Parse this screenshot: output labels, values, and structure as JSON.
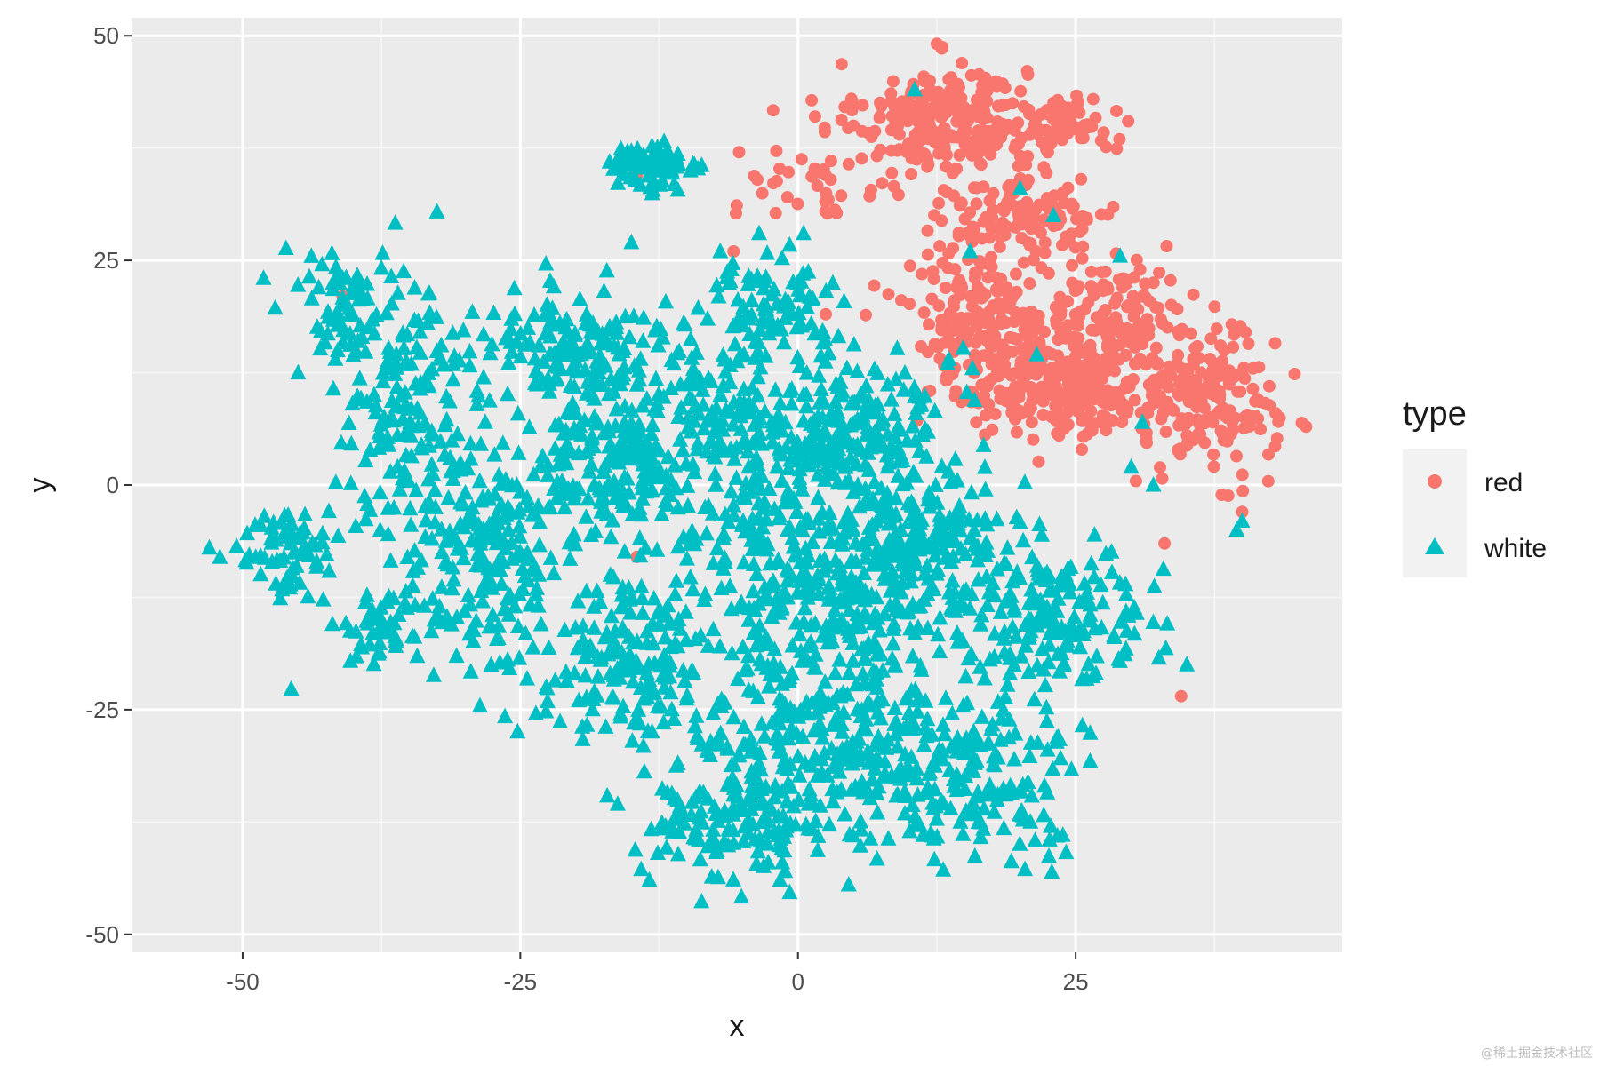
{
  "chart_data": {
    "type": "scatter",
    "title": "",
    "xlabel": "x",
    "ylabel": "y",
    "xlim": [
      -60,
      49
    ],
    "ylim": [
      -52,
      52
    ],
    "x_ticks": [
      -50,
      -25,
      0,
      25
    ],
    "x_tick_labels": [
      "-50",
      "-25",
      "0",
      "25"
    ],
    "y_ticks": [
      -50,
      -25,
      0,
      25,
      50
    ],
    "y_tick_labels": [
      "-50",
      "-25",
      "0",
      "25",
      "50"
    ],
    "grid": true,
    "background": "#ebebeb",
    "legend": {
      "title": "type",
      "position": "right",
      "entries": [
        {
          "label": "red",
          "shape": "circle",
          "color": "#F8766D"
        },
        {
          "label": "white",
          "shape": "triangle",
          "color": "#00BFC4"
        }
      ]
    },
    "series": [
      {
        "name": "red",
        "shape": "circle",
        "color": "#F8766D",
        "clusters": [
          {
            "center": [
              13,
              41
            ],
            "spread": [
              5,
              4
            ],
            "count": 230
          },
          {
            "center": [
              24,
              40
            ],
            "spread": [
              3,
              2
            ],
            "count": 80
          },
          {
            "center": [
              20,
              30
            ],
            "spread": [
              6,
              4
            ],
            "count": 140
          },
          {
            "center": [
              17,
              19
            ],
            "spread": [
              5,
              4
            ],
            "count": 170
          },
          {
            "center": [
              29,
              19
            ],
            "spread": [
              4,
              4
            ],
            "count": 110
          },
          {
            "center": [
              26,
              11
            ],
            "spread": [
              6,
              4
            ],
            "count": 200
          },
          {
            "center": [
              37,
              9
            ],
            "spread": [
              4,
              5
            ],
            "count": 170
          },
          {
            "center": [
              20,
              11
            ],
            "spread": [
              5,
              3
            ],
            "count": 90
          },
          {
            "center": [
              2,
              35
            ],
            "spread": [
              5,
              4
            ],
            "count": 45
          }
        ],
        "points": [
          [
            34.5,
            -23.5
          ],
          [
            33,
            -6.5
          ],
          [
            -41,
            21
          ],
          [
            -5.8,
            26
          ],
          [
            -14.5,
            34.5
          ],
          [
            40,
            -3
          ],
          [
            2.5,
            19
          ],
          [
            43,
            8
          ],
          [
            -14.5,
            -8
          ]
        ]
      },
      {
        "name": "white",
        "shape": "triangle",
        "color": "#00BFC4",
        "clusters": [
          {
            "center": [
              -35,
              8
            ],
            "spread": [
              5,
              9
            ],
            "count": 150
          },
          {
            "center": [
              -28,
              -8
            ],
            "spread": [
              6,
              7
            ],
            "count": 200
          },
          {
            "center": [
              -46,
              -7
            ],
            "spread": [
              3,
              3
            ],
            "count": 60
          },
          {
            "center": [
              -38,
              -16
            ],
            "spread": [
              3,
              3
            ],
            "count": 40
          },
          {
            "center": [
              -20,
              15
            ],
            "spread": [
              6,
              5
            ],
            "count": 150
          },
          {
            "center": [
              -13,
              35
            ],
            "spread": [
              3,
              2
            ],
            "count": 70
          },
          {
            "center": [
              -18,
              2
            ],
            "spread": [
              5,
              5
            ],
            "count": 150
          },
          {
            "center": [
              -15,
              -20
            ],
            "spread": [
              6,
              6
            ],
            "count": 170
          },
          {
            "center": [
              -6,
              5
            ],
            "spread": [
              6,
              8
            ],
            "count": 200
          },
          {
            "center": [
              5,
              6
            ],
            "spread": [
              6,
              6
            ],
            "count": 220
          },
          {
            "center": [
              3,
              -10
            ],
            "spread": [
              8,
              8
            ],
            "count": 300
          },
          {
            "center": [
              0,
              -28
            ],
            "spread": [
              7,
              7
            ],
            "count": 220
          },
          {
            "center": [
              -5,
              -38
            ],
            "spread": [
              6,
              4
            ],
            "count": 120
          },
          {
            "center": [
              15,
              -32
            ],
            "spread": [
              8,
              6
            ],
            "count": 220
          },
          {
            "center": [
              23,
              -14
            ],
            "spread": [
              6,
              5
            ],
            "count": 160
          },
          {
            "center": [
              12,
              -6
            ],
            "spread": [
              5,
              5
            ],
            "count": 130
          },
          {
            "center": [
              -40,
              20
            ],
            "spread": [
              5,
              4
            ],
            "count": 60
          },
          {
            "center": [
              -2,
              20
            ],
            "spread": [
              4,
              3
            ],
            "count": 80
          }
        ],
        "points": [
          [
            10.5,
            44
          ],
          [
            20,
            33
          ],
          [
            15.5,
            26
          ],
          [
            29,
            25.5
          ],
          [
            31,
            7
          ],
          [
            23,
            30
          ],
          [
            40,
            -4
          ],
          [
            39.5,
            -5
          ],
          [
            30,
            2
          ],
          [
            32,
            0
          ],
          [
            -41,
            23
          ],
          [
            -45,
            12.5
          ],
          [
            -53,
            -7
          ],
          [
            -47,
            -11
          ],
          [
            35,
            -20
          ],
          [
            -3.5,
            28
          ],
          [
            0.5,
            28
          ],
          [
            -7,
            26
          ],
          [
            -15,
            27
          ],
          [
            21.5,
            14.5
          ]
        ]
      }
    ]
  },
  "watermark": "@稀土掘金技术社区"
}
